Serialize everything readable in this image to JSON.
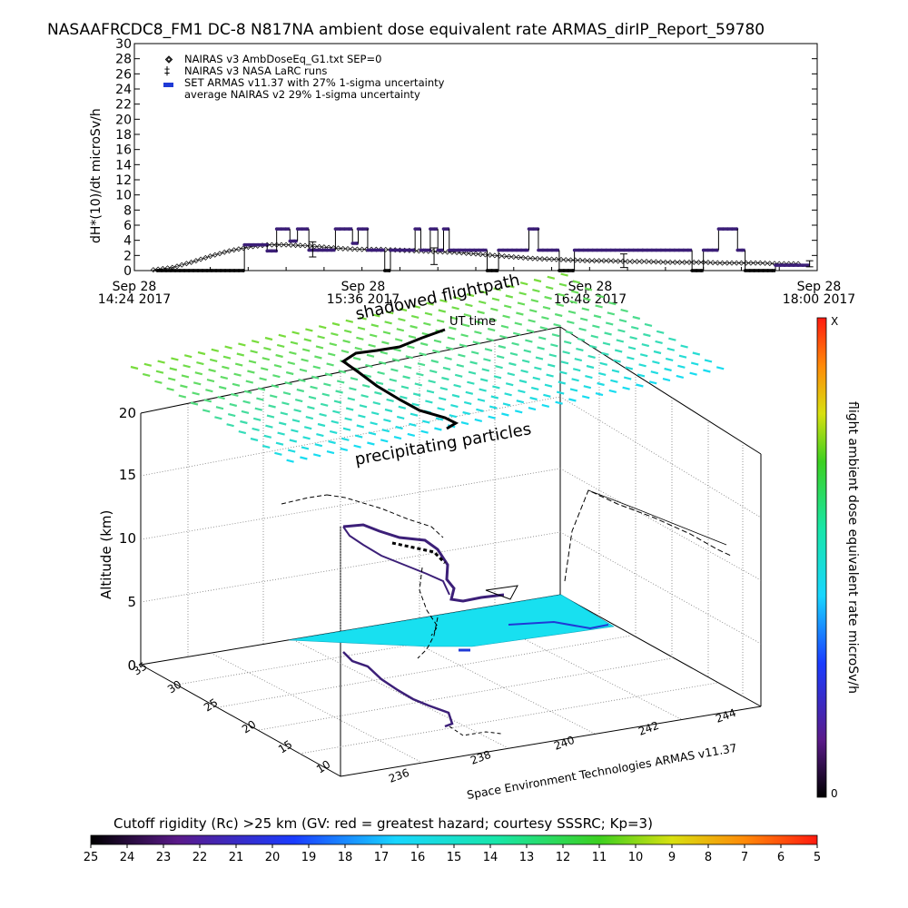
{
  "chart_data": [
    {
      "type": "scatter",
      "title": "NASAAFRCDC8_FM1 DC-8   N817NA ambient dose equivalent rate ARMAS_dirIP_Report_59780",
      "ylabel": "dH*(10)/dt microSv/h",
      "ylim": [
        0,
        30
      ],
      "yticks": [
        0,
        2,
        4,
        6,
        8,
        10,
        12,
        14,
        16,
        18,
        20,
        22,
        24,
        26,
        28,
        30
      ],
      "xlim_hours": [
        14.4,
        18.0
      ],
      "x_tick_labels": [
        {
          "date": "Sep 28",
          "time": "14:24 2017"
        },
        {
          "date": "Sep 28",
          "time": "15:36 2017"
        },
        {
          "date": "Sep 28",
          "time": "16:48 2017"
        },
        {
          "date": "Sep 28",
          "time": "18:00 2017"
        }
      ],
      "xlabel": "UT time",
      "legend_position": "top-left",
      "legend": [
        "NAIRAS v3 AmbDoseEq_G1.txt SEP=0",
        "NAIRAS v3 NASA LaRC runs",
        "SET ARMAS v11.37 with 27% 1-sigma uncertainty",
        "average NAIRAS v2 29% 1-sigma uncertainty"
      ],
      "series": [
        {
          "name": "NAIRAS v3 AmbDoseEq_G1.txt SEP=0",
          "marker": "diamond",
          "x": [
            14.5,
            14.6,
            14.7,
            14.8,
            14.9,
            15.0,
            15.1,
            15.2,
            15.3,
            15.4,
            15.5,
            15.6,
            15.7,
            15.8,
            15.9,
            16.0,
            16.1,
            16.2,
            16.3,
            16.4,
            16.5,
            16.6,
            16.7,
            16.8,
            16.9,
            17.0,
            17.1,
            17.2,
            17.3,
            17.4,
            17.5,
            17.6,
            17.7,
            17.8,
            17.9
          ],
          "y": [
            0.1,
            0.4,
            1.1,
            1.9,
            2.6,
            3.1,
            3.4,
            3.4,
            3.3,
            3.1,
            2.9,
            2.8,
            2.8,
            2.7,
            2.6,
            2.5,
            2.4,
            2.2,
            2.0,
            1.8,
            1.6,
            1.5,
            1.4,
            1.3,
            1.3,
            1.2,
            1.2,
            1.1,
            1.1,
            1.1,
            1.0,
            1.0,
            1.0,
            0.9,
            0.9
          ]
        },
        {
          "name": "SET ARMAS v11.37 with 27% 1-sigma uncertainty",
          "color": "#3c1f78",
          "segments": [
            [
              14.52,
              14.98,
              0
            ],
            [
              14.98,
              15.1,
              3.4
            ],
            [
              15.1,
              15.15,
              2.6
            ],
            [
              15.15,
              15.22,
              5.5
            ],
            [
              15.22,
              15.26,
              3.9
            ],
            [
              15.26,
              15.32,
              5.5
            ],
            [
              15.32,
              15.46,
              2.7
            ],
            [
              15.46,
              15.55,
              5.5
            ],
            [
              15.55,
              15.58,
              3.6
            ],
            [
              15.58,
              15.63,
              5.5
            ],
            [
              15.63,
              15.72,
              2.7
            ],
            [
              15.72,
              15.75,
              0
            ],
            [
              15.75,
              15.88,
              2.7
            ],
            [
              15.88,
              15.91,
              5.5
            ],
            [
              15.91,
              15.96,
              2.7
            ],
            [
              15.96,
              16.0,
              5.5
            ],
            [
              16.0,
              16.03,
              2.7
            ],
            [
              16.03,
              16.06,
              5.5
            ],
            [
              16.06,
              16.12,
              2.7
            ],
            [
              16.12,
              16.26,
              2.7
            ],
            [
              16.26,
              16.32,
              0
            ],
            [
              16.32,
              16.48,
              2.7
            ],
            [
              16.48,
              16.53,
              5.5
            ],
            [
              16.53,
              16.64,
              2.7
            ],
            [
              16.64,
              16.72,
              0
            ],
            [
              16.72,
              17.08,
              2.7
            ],
            [
              17.08,
              17.34,
              2.7
            ],
            [
              17.34,
              17.4,
              0
            ],
            [
              17.4,
              17.48,
              2.7
            ],
            [
              17.48,
              17.58,
              5.5
            ],
            [
              17.58,
              17.62,
              2.7
            ],
            [
              17.62,
              17.78,
              0
            ],
            [
              17.78,
              17.96,
              0.7
            ]
          ]
        },
        {
          "name": "average NAIRAS v2 29% 1-sigma uncertainty",
          "error_bars": [
            {
              "x": 15.34,
              "y": 2.8,
              "err": 1.0
            },
            {
              "x": 15.98,
              "y": 1.9,
              "err": 1.1
            },
            {
              "x": 16.98,
              "y": 1.3,
              "err": 0.9
            },
            {
              "x": 17.96,
              "y": 0.9,
              "err": 0.4
            }
          ]
        }
      ]
    },
    {
      "type": "heatmap",
      "title": "",
      "annotations": [
        "shadowed flightpath",
        "UT time",
        "precipitating particles",
        "Space Environment Technologies ARMAS v11.37"
      ],
      "zlabel": "Altitude (km)",
      "zticks": [
        0,
        5,
        10,
        15,
        20
      ],
      "latitude_ticks": [
        "10",
        "15",
        "20",
        "25",
        "30",
        "35"
      ],
      "longitude_ticks": [
        "236",
        "238",
        "240",
        "242",
        "244"
      ],
      "colorbar_right": {
        "label": "flight ambient dose equivalent rate microSv/h",
        "top_label": "X",
        "bottom_label": "0"
      },
      "colorbar_bottom": {
        "label": "Cutoff rigidity (Rc) >25 km (GV: red = greatest hazard; courtesy SSSRC; Kp=3)",
        "ticks": [
          "25",
          "24",
          "23",
          "22",
          "21",
          "20",
          "19",
          "18",
          "17",
          "16",
          "15",
          "14",
          "13",
          "12",
          "11",
          "10",
          "9",
          "8",
          "7",
          "6",
          "5"
        ]
      }
    }
  ]
}
